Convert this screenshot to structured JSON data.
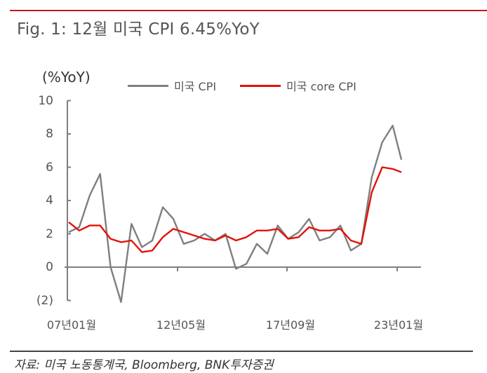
{
  "figure": {
    "title": "Fig. 1: 12월  미국  CPI 6.45%YoY",
    "unit_label": "(%YoY)",
    "source": "자료: 미국 노동통계국, Bloomberg, BNK투자증권",
    "colors": {
      "rule": "#c8161d",
      "cpi": "#7f7f7f",
      "core_cpi": "#e3120b",
      "axis": "#7f7f7f"
    }
  },
  "legend": [
    {
      "label": "미국 CPI",
      "color": "#7f7f7f"
    },
    {
      "label": "미국 core CPI",
      "color": "#e3120b"
    }
  ],
  "chart_data": {
    "type": "line",
    "title": "12월 미국 CPI 6.45%YoY",
    "xlabel": "",
    "ylabel": "(%YoY)",
    "ylim": [
      -2,
      10
    ],
    "yticks": [
      10,
      8,
      6,
      4,
      2,
      0,
      -2
    ],
    "ytick_labels": [
      "10",
      "8",
      "6",
      "4",
      "2",
      "0",
      "(2)"
    ],
    "xtick_labels": [
      "07년01월",
      "12년05월",
      "17년09월",
      "23년01월"
    ],
    "grid": false,
    "legend_position": "top",
    "x": [
      "2007-01",
      "2007-07",
      "2008-01",
      "2008-07",
      "2009-01",
      "2009-07",
      "2010-01",
      "2010-07",
      "2011-01",
      "2011-07",
      "2012-01",
      "2012-07",
      "2013-01",
      "2013-07",
      "2014-01",
      "2014-07",
      "2015-01",
      "2015-07",
      "2016-01",
      "2016-07",
      "2017-01",
      "2017-07",
      "2018-01",
      "2018-07",
      "2019-01",
      "2019-07",
      "2020-01",
      "2020-07",
      "2021-01",
      "2021-07",
      "2022-01",
      "2022-07",
      "2022-12"
    ],
    "series": [
      {
        "name": "미국 CPI",
        "values": [
          2.1,
          2.4,
          4.3,
          5.6,
          0.0,
          -2.1,
          2.6,
          1.2,
          1.6,
          3.6,
          2.9,
          1.4,
          1.6,
          2.0,
          1.6,
          2.0,
          -0.1,
          0.2,
          1.4,
          0.8,
          2.5,
          1.7,
          2.1,
          2.9,
          1.6,
          1.8,
          2.5,
          1.0,
          1.4,
          5.4,
          7.5,
          8.5,
          6.45
        ]
      },
      {
        "name": "미국 core CPI",
        "values": [
          2.7,
          2.2,
          2.5,
          2.5,
          1.7,
          1.5,
          1.6,
          0.9,
          1.0,
          1.8,
          2.3,
          2.1,
          1.9,
          1.7,
          1.6,
          1.9,
          1.6,
          1.8,
          2.2,
          2.2,
          2.3,
          1.7,
          1.8,
          2.4,
          2.2,
          2.2,
          2.3,
          1.6,
          1.4,
          4.5,
          6.0,
          5.9,
          5.7
        ]
      }
    ]
  }
}
